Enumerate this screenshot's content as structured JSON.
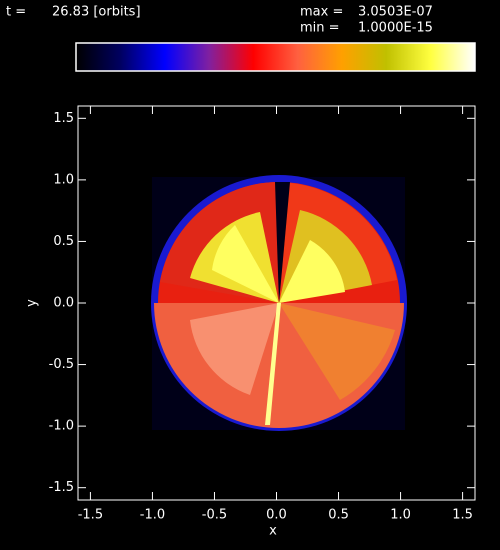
{
  "header": {
    "time_label": "t =",
    "time_value": "26.83 [orbits]",
    "max_label": "max =",
    "max_value": "3.0503E-07",
    "min_label": "min =",
    "min_value": "1.0000E-15"
  },
  "chart_data": {
    "type": "image",
    "colormap": [
      "#000000",
      "#000060",
      "#0000ff",
      "#8020a0",
      "#ff0000",
      "#ff6040",
      "#ffa000",
      "#c0c000",
      "#ffff40",
      "#ffffff"
    ],
    "xlabel": "x",
    "ylabel": "y",
    "xlim": [
      -1.6,
      1.6
    ],
    "ylim": [
      -1.6,
      1.6
    ],
    "xticks": [
      -1.5,
      {
        "value": -1,
        "label": "-1.0"
      },
      -0.5,
      {
        "value": 0,
        "label": "0.0"
      },
      0.5,
      {
        "value": 1,
        "label": "1.0"
      },
      1.5
    ],
    "yticks": [
      -1.5,
      {
        "value": -1,
        "label": "-1.0"
      },
      -0.5,
      {
        "value": 0,
        "label": "0.0"
      },
      0.5,
      {
        "value": 1,
        "label": "1.0"
      },
      1.5
    ]
  }
}
